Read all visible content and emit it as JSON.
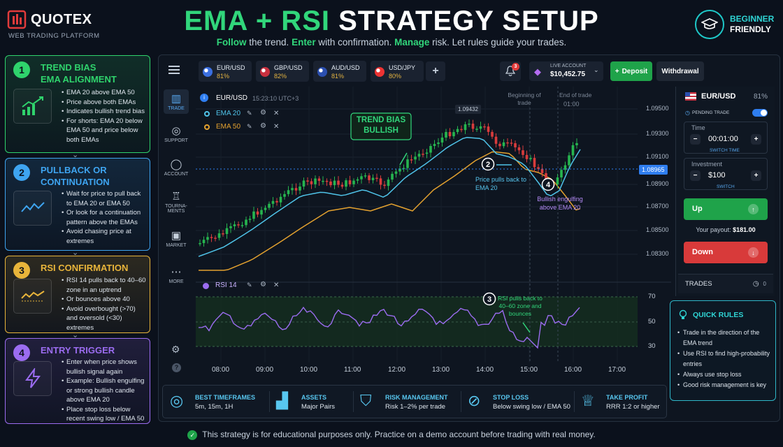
{
  "brand": {
    "name": "QUOTEX",
    "tagline": "WEB TRADING PLATFORM"
  },
  "header": {
    "title_green": "EMA + RSI",
    "title_white": "STRATEGY SETUP",
    "subtitle": [
      {
        "t": "Follow",
        "hl": true
      },
      {
        "t": " the trend. ",
        "hl": false
      },
      {
        "t": "Enter",
        "hl": true
      },
      {
        "t": " with confirmation. ",
        "hl": false
      },
      {
        "t": "Manage",
        "hl": true
      },
      {
        "t": " risk. Let rules guide your trades.",
        "hl": false
      }
    ]
  },
  "badge": {
    "line1": "BEGINNER",
    "line2": "FRIENDLY"
  },
  "cards": [
    {
      "num": "1",
      "title1": "TREND BIAS",
      "title2": "EMA ALIGNMENT",
      "color": "#2fd36c",
      "bullets": [
        "EMA 20 above EMA 50",
        "Price above both EMAs",
        "Indicates bullish trend bias",
        "For shorts: EMA 20 below EMA 50 and price below both EMAs"
      ]
    },
    {
      "num": "2",
      "title1": "PULLBACK OR",
      "title2": "CONTINUATION",
      "color": "#3ea4f0",
      "bullets": [
        "Wait for price to pull back to EMA 20 or EMA 50",
        "Or look for a continuation pattern above the EMAs",
        "Avoid chasing price at extremes"
      ]
    },
    {
      "num": "3",
      "title1": "RSI CONFIRMATION",
      "title2": "",
      "color": "#e8b43a",
      "bullets": [
        "RSI 14 pulls back to 40–60 zone in an uptrend",
        "Or bounces above 40",
        "Avoid overbought (>70) and oversold (<30) extremes"
      ]
    },
    {
      "num": "4",
      "title1": "ENTRY TRIGGER",
      "title2": "",
      "color": "#9b6cf0",
      "bullets": [
        "Enter when price shows bullish signal again",
        "Example: Bullish engulfing or strong bullish candle above EMA 20",
        "Place stop loss below recent swing low / EMA 50"
      ]
    }
  ],
  "pairs": [
    {
      "name": "EUR/USD",
      "pct": "81%",
      "color": "#3b6fe0"
    },
    {
      "name": "GBP/USD",
      "pct": "82%",
      "color": "#c9303f"
    },
    {
      "name": "AUD/USD",
      "pct": "81%",
      "color": "#2b4fb0"
    },
    {
      "name": "USD/JPY",
      "pct": "80%",
      "color": "#e33"
    }
  ],
  "topbar": {
    "notif_count": "3",
    "account_label": "LIVE ACCOUNT",
    "balance": "$10,452.75",
    "deposit": "Deposit",
    "withdrawal": "Withdrawal",
    "add": "+"
  },
  "sidebar": [
    "TRADE",
    "SUPPORT",
    "ACCOUNT",
    "TOURNA-MENTS",
    "MARKET",
    "MORE"
  ],
  "chart_info": {
    "symbol": "EUR/USD",
    "time": "15:23:10 UTC+3",
    "ema20": "EMA 20",
    "ema50": "EMA 50",
    "rsi": "RSI 14",
    "peak": "1.09432",
    "current": "1.08965",
    "begin": "Beginning of trade",
    "end": "End of trade",
    "end_time": "01:00"
  },
  "annotations": {
    "trend_bias": "TREND BIAS BULLISH",
    "a2": "Price pulls back to EMA 20",
    "a4": "Bullish engulfing above EMA 20",
    "a3": "RSI pulls back to 40–60 zone and bounces"
  },
  "chart_data": {
    "type": "line",
    "price_ticks": [
      "1.09500",
      "1.09300",
      "1.09100",
      "1.08900",
      "1.08700",
      "1.08500",
      "1.08300"
    ],
    "rsi_ticks": [
      "70",
      "50",
      "30"
    ],
    "x": [
      "08:00",
      "09:00",
      "10:00",
      "11:00",
      "12:00",
      "13:00",
      "14:00",
      "15:00",
      "16:00",
      "17:00"
    ]
  },
  "trade": {
    "pair": "EUR/USD",
    "pct": "81%",
    "pending": "PENDING TRADE",
    "time_label": "Time",
    "time": "00:01:00",
    "switch_time": "SWITCH TIME",
    "inv_label": "Investment",
    "inv": "$100",
    "switch": "SWITCH",
    "up": "Up",
    "payout_label": "Your payout:",
    "payout": "$181.00",
    "down": "Down",
    "trades": "TRADES",
    "trades_count": "0"
  },
  "quick_rules": {
    "title": "QUICK RULES",
    "items": [
      "Trade in the direction of the EMA trend",
      "Use RSI to find high-probability entries",
      "Always use stop loss",
      "Good risk management is key"
    ]
  },
  "strip": [
    {
      "h": "BEST TIMEFRAMES",
      "v": "5m, 15m, 1H"
    },
    {
      "h": "ASSETS",
      "v": "Major Pairs"
    },
    {
      "h": "RISK MANAGEMENT",
      "v": "Risk 1–2% per trade"
    },
    {
      "h": "STOP LOSS",
      "v": "Below swing low / EMA 50"
    },
    {
      "h": "TAKE PROFIT",
      "v": "RRR 1:2 or higher"
    }
  ],
  "disclaimer": "This strategy is for educational purposes only. Practice on a demo account before trading with real money."
}
